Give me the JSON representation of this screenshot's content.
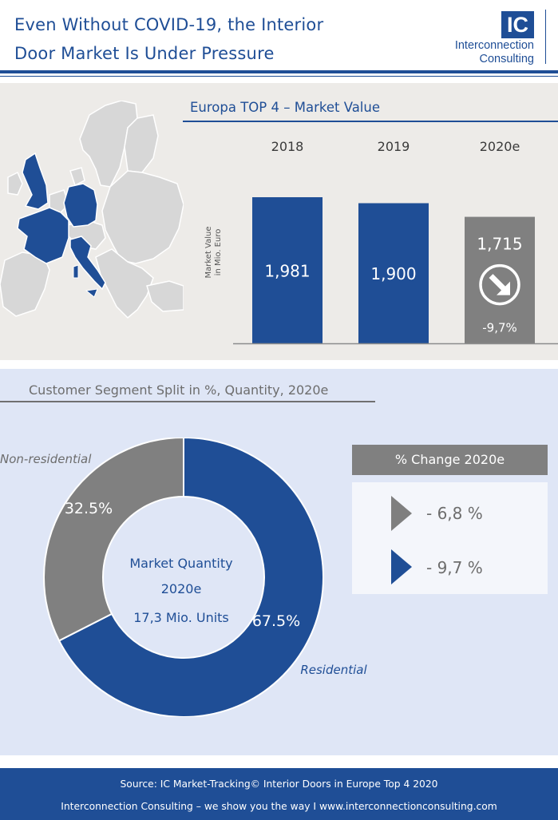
{
  "header": {
    "title_line1": "Even Without COVID-19, the Interior",
    "title_line2": "Door Market Is Under Pressure",
    "logo_mark": "IC",
    "logo_name_line1": "Interconnection",
    "logo_name_line2": "Consulting"
  },
  "colors": {
    "brand_blue": "#1f4e96",
    "grey": "#808080",
    "map_grey": "#d7d7d7"
  },
  "map": {
    "icon": "europe-map",
    "highlighted_countries": [
      "United Kingdom",
      "France",
      "Germany",
      "Italy"
    ]
  },
  "chart_data": [
    {
      "type": "bar",
      "title": "Europa TOP 4 – Market Value",
      "ylabel": "Market Value in Mio. Euro",
      "categories": [
        "2018",
        "2019",
        "2020e"
      ],
      "values": [
        1981,
        1900,
        1715
      ],
      "value_labels": [
        "1,981",
        "1,900",
        "1,715"
      ],
      "colors": [
        "#1f4e96",
        "#1f4e96",
        "#808080"
      ],
      "annotation": {
        "category": "2020e",
        "text": "-9,7%",
        "icon": "down-right-arrow-icon"
      },
      "ylabel_line1": "Market Value",
      "ylabel_line2": "in Mio. Euro"
    },
    {
      "type": "pie",
      "variant": "donut",
      "title": "Customer Segment Split in %, Quantity, 2020e",
      "slices": [
        {
          "label": "Residential",
          "value": 67.5,
          "value_label": "67.5%",
          "color": "#1f4e96"
        },
        {
          "label": "Non-residential",
          "value": 32.5,
          "value_label": "32.5%",
          "color": "#808080"
        }
      ],
      "center_text": [
        "Market Quantity",
        "2020e",
        "17,3 Mio. Units"
      ]
    }
  ],
  "change_panel": {
    "header": "% Change 2020e",
    "items": [
      {
        "value": "- 6,8 %",
        "color": "#808080",
        "segment": "Non-residential"
      },
      {
        "value": "- 9,7 %",
        "color": "#1f4e96",
        "segment": "Residential"
      }
    ]
  },
  "footer": {
    "line1": "Source: IC Market-Tracking© Interior Doors in Europe Top 4 2020",
    "line2": "Interconnection Consulting – we show you the way I  www.interconnectionconsulting.com"
  }
}
